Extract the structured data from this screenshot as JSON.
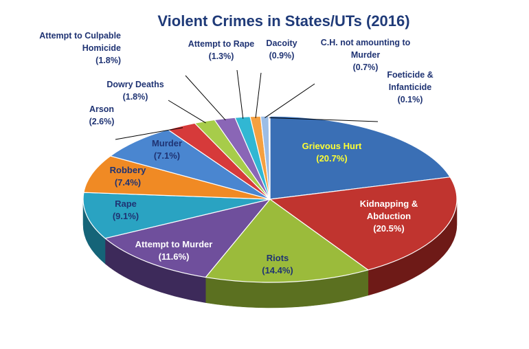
{
  "chart_data": {
    "type": "pie",
    "title": "Violent Crimes in States/UTs (2016)",
    "slices": [
      {
        "label": "Grievous Hurt",
        "value": 20.7,
        "pct_text": "(20.7%)",
        "color": "#3a6fb5",
        "side": "#1e3f6f",
        "label_color": "#ffff33"
      },
      {
        "label": "Kidnapping & Abduction",
        "label_lines": [
          "Kidnapping &",
          "Abduction"
        ],
        "value": 20.5,
        "pct_text": "(20.5%)",
        "color": "#c0342f",
        "side": "#6e1a17",
        "label_color": "#ffffff"
      },
      {
        "label": "Riots",
        "value": 14.4,
        "pct_text": "(14.4%)",
        "color": "#9bbb3b",
        "side": "#5b7020",
        "label_color": "#1f3373"
      },
      {
        "label": "Attempt to Murder",
        "value": 11.6,
        "pct_text": "(11.6%)",
        "color": "#6f4f9c",
        "side": "#3d2a5a",
        "label_color": "#ffffff"
      },
      {
        "label": "Rape",
        "value": 9.1,
        "pct_text": "(9.1%)",
        "color": "#2aa3c2",
        "side": "#156478",
        "label_color": "#1f3373"
      },
      {
        "label": "Robbery",
        "value": 7.4,
        "pct_text": "(7.4%)",
        "color": "#f08a24",
        "side": "#9a5210",
        "label_color": "#1f3373"
      },
      {
        "label": "Murder",
        "value": 7.1,
        "pct_text": "(7.1%)",
        "color": "#4a86d0",
        "side": "#244f84",
        "label_color": "#1f3373"
      },
      {
        "label": "Arson",
        "value": 2.6,
        "pct_text": "(2.6%)",
        "color": "#d63a3a",
        "side": "#7e1f1f",
        "label_color": "#1f3373"
      },
      {
        "label": "Dowry Deaths",
        "value": 1.8,
        "pct_text": "(1.8%)",
        "color": "#a7cc4a",
        "side": "#627a24",
        "label_color": "#1f3373"
      },
      {
        "label": "Attempt to Culpable Homicide",
        "label_lines": [
          "Attempt to Culpable",
          "Homicide"
        ],
        "value": 1.8,
        "pct_text": "(1.8%)",
        "color": "#8a66b6",
        "side": "#4b3566",
        "label_color": "#1f3373"
      },
      {
        "label": "Attempt to Rape",
        "value": 1.3,
        "pct_text": "(1.3%)",
        "color": "#31b7d3",
        "side": "#17697c",
        "label_color": "#1f3373"
      },
      {
        "label": "Dacoity",
        "value": 0.9,
        "pct_text": "(0.9%)",
        "color": "#f5a040",
        "side": "#9a6018",
        "label_color": "#1f3373"
      },
      {
        "label": "C.H. not amounting to Murder",
        "label_lines": [
          "C.H. not amounting to",
          "Murder"
        ],
        "value": 0.7,
        "pct_text": "(0.7%)",
        "color": "#9cbde6",
        "side": "#5a7596",
        "label_color": "#1f3373"
      },
      {
        "label": "Foeticide & Infanticide",
        "label_lines": [
          "Foeticide &",
          "Infanticide"
        ],
        "value": 0.1,
        "pct_text": "(0.1%)",
        "color": "#e8d7f0",
        "side": "#8e7f96",
        "label_color": "#1f3373"
      }
    ],
    "legend": "none"
  }
}
